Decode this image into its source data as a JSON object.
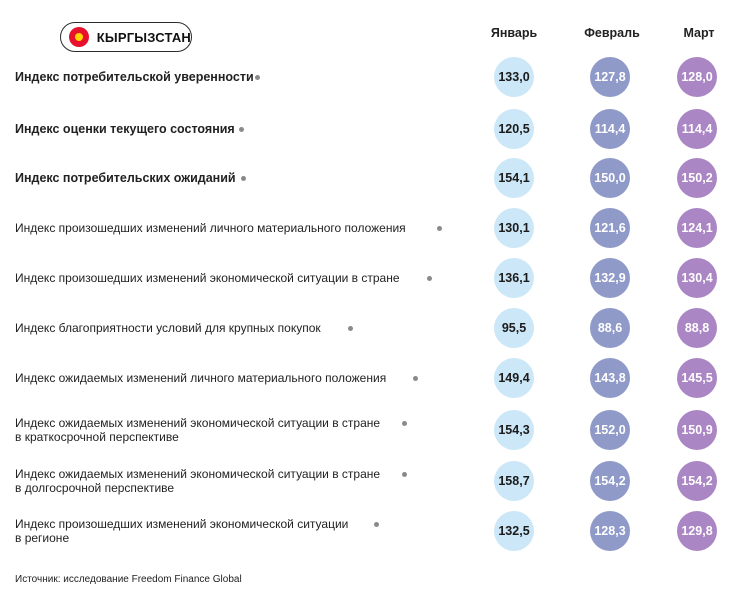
{
  "header": {
    "country": "КЫРГЫЗСТАН",
    "flag_colors": {
      "field": "#e8112d",
      "sun": "#ffd400"
    }
  },
  "colors": {
    "jan": "#cce7f7",
    "feb": "#8f9ac9",
    "mar": "#ab86c4",
    "leader_dot": "#8a8a8a"
  },
  "chart_data": {
    "type": "table",
    "columns": [
      "Январь",
      "Февраль",
      "Март"
    ],
    "rows": [
      {
        "label": "Индекс потребительской уверенности",
        "bold": true,
        "values": [
          "133,0",
          "127,8",
          "128,0"
        ]
      },
      {
        "label": "Индекс оценки текущего состояния",
        "bold": true,
        "values": [
          "120,5",
          "114,4",
          "114,4"
        ]
      },
      {
        "label": "Индекс потребительских ожиданий",
        "bold": true,
        "values": [
          "154,1",
          "150,0",
          "150,2"
        ]
      },
      {
        "label": "Индекс произошедших изменений личного материального положения",
        "bold": false,
        "values": [
          "130,1",
          "121,6",
          "124,1"
        ]
      },
      {
        "label": "Индекс произошедших изменений экономической ситуации в стране",
        "bold": false,
        "values": [
          "136,1",
          "132,9",
          "130,4"
        ]
      },
      {
        "label": "Индекс благоприятности условий для крупных покупок",
        "bold": false,
        "values": [
          "95,5",
          "88,6",
          "88,8"
        ]
      },
      {
        "label": "Индекс ожидаемых изменений личного материального положения",
        "bold": false,
        "values": [
          "149,4",
          "143,8",
          "145,5"
        ]
      },
      {
        "label": "Индекс ожидаемых изменений экономической ситуации в стране\nв краткосрочной перспективе",
        "bold": false,
        "values": [
          "154,3",
          "152,0",
          "150,9"
        ]
      },
      {
        "label": "Индекс ожидаемых изменений экономической ситуации в стране\nв долгосрочной перспективе",
        "bold": false,
        "values": [
          "158,7",
          "154,2",
          "154,2"
        ]
      },
      {
        "label": "Индекс произошедших изменений экономической ситуации\nв регионе",
        "bold": false,
        "values": [
          "132,5",
          "128,3",
          "129,8"
        ]
      }
    ]
  },
  "footer": {
    "source": "Источник: исследование Freedom Finance Global"
  }
}
